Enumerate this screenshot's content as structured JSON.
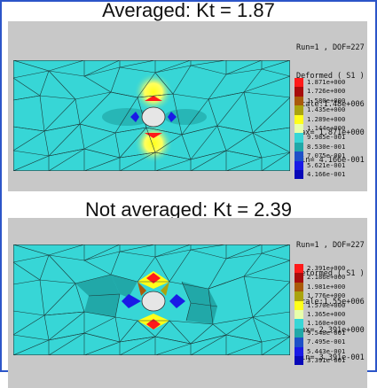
{
  "plots": [
    {
      "title": "Averaged: Kt = 1.87",
      "info": [
        "Run=1 , DOF=227",
        "Deformed ( S1 )",
        "Scale:1.48e+006",
        "Max= 1.871e+000",
        "Min= 4.166e-001"
      ],
      "legend": [
        {
          "value": "1.871e+000",
          "color": "#ff1a1a"
        },
        {
          "value": "1.726e+000",
          "color": "#a80c0c"
        },
        {
          "value": "1.580e+000",
          "color": "#aa5a0a"
        },
        {
          "value": "1.435e+000",
          "color": "#aaa30e"
        },
        {
          "value": "1.289e+000",
          "color": "#ffff1a"
        },
        {
          "value": "1.144e+000",
          "color": "#e8ffaa"
        },
        {
          "value": "9.985e-001",
          "color": "#37d6d6"
        },
        {
          "value": "8.530e-001",
          "color": "#21a8a8"
        },
        {
          "value": "7.075e-001",
          "color": "#1e50c8"
        },
        {
          "value": "5.621e-001",
          "color": "#1a1ae6"
        },
        {
          "value": "4.166e-001",
          "color": "#0808b8"
        }
      ]
    },
    {
      "title": "Not averaged: Kt = 2.39",
      "info": [
        "Run=1 , DOF=227",
        "Deformed ( S1 )",
        "Scale:1.55e+006",
        "Max= 2.391e+000",
        "Min= 3.391e-001"
      ],
      "legend": [
        {
          "value": "2.391e+000",
          "color": "#ff1a1a"
        },
        {
          "value": "2.186e+000",
          "color": "#a80c0c"
        },
        {
          "value": "1.981e+000",
          "color": "#aa5a0a"
        },
        {
          "value": "1.776e+000",
          "color": "#aaa30e"
        },
        {
          "value": "1.570e+000",
          "color": "#ffff1a"
        },
        {
          "value": "1.365e+000",
          "color": "#e8ffaa"
        },
        {
          "value": "1.160e+000",
          "color": "#37d6d6"
        },
        {
          "value": "9.548e-001",
          "color": "#21a8a8"
        },
        {
          "value": "7.495e-001",
          "color": "#1e50c8"
        },
        {
          "value": "5.443e-001",
          "color": "#1a1ae6"
        },
        {
          "value": "3.391e-001",
          "color": "#0808b8"
        }
      ]
    }
  ]
}
